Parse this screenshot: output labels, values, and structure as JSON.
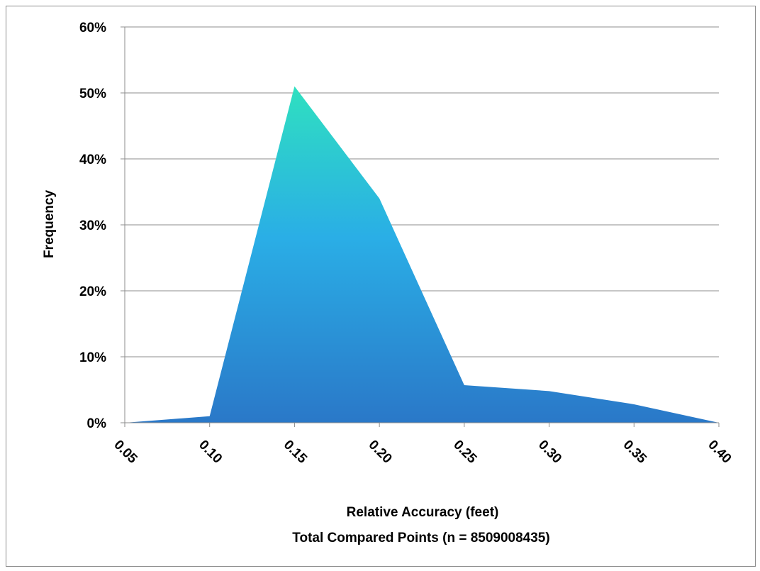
{
  "chart_data": {
    "type": "area",
    "x": [
      "0.05",
      "0.10",
      "0.15",
      "0.20",
      "0.25",
      "0.30",
      "0.35",
      "0.40"
    ],
    "series": [
      {
        "values": [
          0.0,
          1.0,
          51.0,
          34.0,
          5.7,
          4.8,
          2.8,
          0.0
        ]
      }
    ],
    "yticks": [
      "0%",
      "10%",
      "20%",
      "30%",
      "40%",
      "50%",
      "60%"
    ],
    "ylim": [
      0,
      60
    ],
    "ylabel": "Frequency",
    "xlabel": "Relative Accuracy (feet)",
    "xlabel_line2": "Total Compared Points (n = 8509008435)",
    "grid": "horizontal",
    "colors": {
      "gradient_top": "#2fe0c0",
      "gradient_mid": "#2aaee6",
      "gradient_bottom": "#2a78c8",
      "gridline": "#8c8c8c",
      "axis": "#8c8c8c"
    }
  }
}
